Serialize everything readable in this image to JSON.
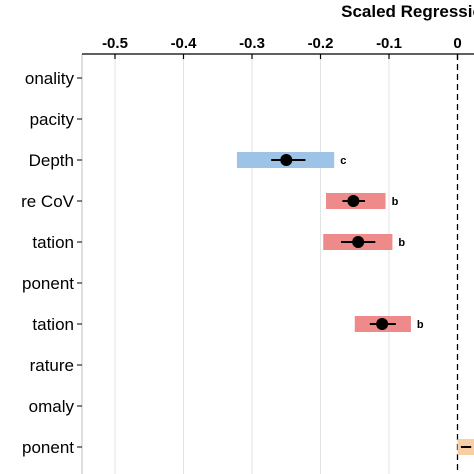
{
  "chart_data": {
    "type": "forest",
    "title": "Scaled Regressio",
    "x_ticks": [
      -0.5,
      -0.4,
      -0.3,
      -0.2,
      -0.1,
      0
    ],
    "x_tick_labels": [
      "-0.5",
      "-0.4",
      "-0.3",
      "-0.2",
      "-0.1",
      "0"
    ],
    "xlim": [
      -0.56,
      0.02
    ],
    "grid": true,
    "reference_line": 0,
    "categories": [
      "onality",
      "pacity",
      "Depth",
      "re CoV",
      "tation",
      "ponent",
      "tation",
      "rature",
      "omaly",
      "ponent"
    ],
    "rows": [
      {
        "label": "onality"
      },
      {
        "label": "pacity"
      },
      {
        "label": "Depth",
        "estimate": -0.25,
        "ci_low": -0.272,
        "ci_high": -0.222,
        "bar_low": -0.322,
        "bar_high": -0.18,
        "sig": "c",
        "color": "#9dc3e6"
      },
      {
        "label": "re CoV",
        "estimate": -0.152,
        "ci_low": -0.168,
        "ci_high": -0.135,
        "bar_low": -0.192,
        "bar_high": -0.105,
        "sig": "b",
        "color": "#ee8a8a"
      },
      {
        "label": "tation",
        "estimate": -0.145,
        "ci_low": -0.17,
        "ci_high": -0.12,
        "bar_low": -0.196,
        "bar_high": -0.095,
        "sig": "b",
        "color": "#ee8a8a"
      },
      {
        "label": "ponent"
      },
      {
        "label": "tation",
        "estimate": -0.11,
        "ci_low": -0.128,
        "ci_high": -0.09,
        "bar_low": -0.15,
        "bar_high": -0.068,
        "sig": "b",
        "color": "#ee8a8a"
      },
      {
        "label": "rature"
      },
      {
        "label": "omaly"
      },
      {
        "label": "ponent",
        "bar_low": 0.0,
        "bar_high": 0.03,
        "color": "#f8cfa4"
      }
    ]
  }
}
